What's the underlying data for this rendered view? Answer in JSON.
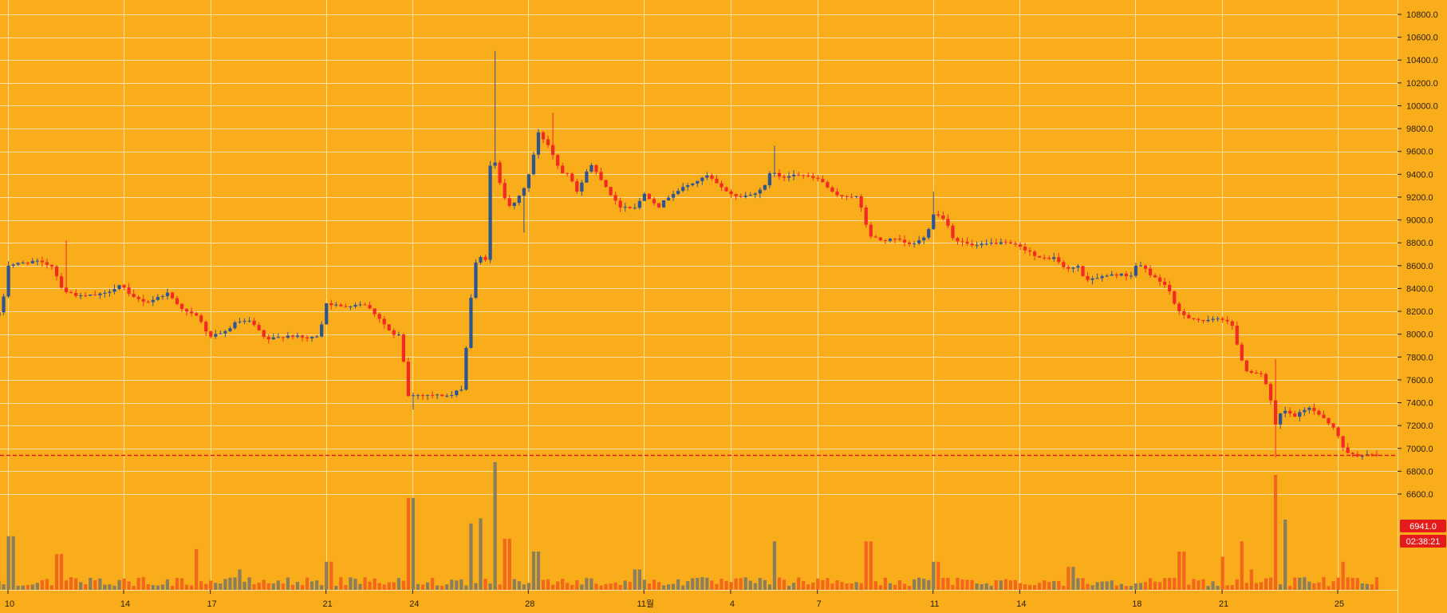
{
  "chart_data": {
    "type": "candlestick",
    "title": "",
    "xlabel": "",
    "ylabel": "",
    "ylim": [
      6500,
      10900
    ],
    "grid": true,
    "y_ticks": [
      6600,
      6800,
      7000,
      7200,
      7400,
      7600,
      7800,
      8000,
      8200,
      8400,
      8600,
      8800,
      9000,
      9200,
      9400,
      9600,
      9800,
      10000,
      10200,
      10400,
      10600,
      10800
    ],
    "y_tick_labels": [
      "6600.0",
      "6800.0",
      "7000.0",
      "7200.0",
      "7400.0",
      "7600.0",
      "7800.0",
      "8000.0",
      "8200.0",
      "8400.0",
      "8600.0",
      "8800.0",
      "9000.0",
      "9200.0",
      "9400.0",
      "9600.0",
      "9800.0",
      "10000.0",
      "10200.0",
      "10400.0",
      "10600.0",
      "10800.0"
    ],
    "x_ticks": [
      {
        "label": "10",
        "day": 10
      },
      {
        "label": "14",
        "day": 14
      },
      {
        "label": "17",
        "day": 17
      },
      {
        "label": "21",
        "day": 21
      },
      {
        "label": "24",
        "day": 24
      },
      {
        "label": "28",
        "day": 28
      },
      {
        "label": "11월",
        "day": 32
      },
      {
        "label": "4",
        "day": 35
      },
      {
        "label": "7",
        "day": 38
      },
      {
        "label": "11",
        "day": 42
      },
      {
        "label": "14",
        "day": 45
      },
      {
        "label": "18",
        "day": 49
      },
      {
        "label": "21",
        "day": 52
      },
      {
        "label": "25",
        "day": 56
      }
    ],
    "day_range": [
      9.6,
      57.3
    ],
    "current_price": 6941.0,
    "current_price_label": "6941.0",
    "countdown_label": "02:38:21",
    "colors": {
      "background": "#f9ad1b",
      "grid": "#fde2a6",
      "up": "#2c5593",
      "down": "#f22a22",
      "volume_up": "#8b7e5a",
      "volume_down": "#f3671c",
      "price_line": "#e51b1b"
    },
    "price_keypoints": [
      [
        9.6,
        8160
      ],
      [
        9.9,
        8200
      ],
      [
        10.0,
        8600
      ],
      [
        10.5,
        8620
      ],
      [
        11.0,
        8640
      ],
      [
        11.6,
        8600
      ],
      [
        12.0,
        8380
      ],
      [
        12.6,
        8330
      ],
      [
        13.4,
        8350
      ],
      [
        14.0,
        8440
      ],
      [
        14.3,
        8330
      ],
      [
        14.9,
        8280
      ],
      [
        15.6,
        8360
      ],
      [
        16.2,
        8200
      ],
      [
        16.7,
        8150
      ],
      [
        17.0,
        7980
      ],
      [
        17.5,
        8000
      ],
      [
        18.0,
        8110
      ],
      [
        18.5,
        8110
      ],
      [
        19.0,
        7950
      ],
      [
        19.8,
        7990
      ],
      [
        20.5,
        7960
      ],
      [
        20.9,
        8000
      ],
      [
        21.0,
        8280
      ],
      [
        21.6,
        8240
      ],
      [
        22.4,
        8270
      ],
      [
        22.9,
        8150
      ],
      [
        23.4,
        7990
      ],
      [
        23.7,
        7990
      ],
      [
        23.85,
        7460
      ],
      [
        24.5,
        7470
      ],
      [
        25.4,
        7460
      ],
      [
        25.8,
        7530
      ],
      [
        26.1,
        8320
      ],
      [
        26.3,
        8680
      ],
      [
        26.6,
        8660
      ],
      [
        26.8,
        9630
      ],
      [
        27.2,
        9230
      ],
      [
        27.5,
        9100
      ],
      [
        27.9,
        9260
      ],
      [
        28.2,
        9470
      ],
      [
        28.4,
        9770
      ],
      [
        28.8,
        9650
      ],
      [
        29.2,
        9420
      ],
      [
        29.5,
        9410
      ],
      [
        29.8,
        9230
      ],
      [
        30.2,
        9500
      ],
      [
        30.6,
        9360
      ],
      [
        31.2,
        9120
      ],
      [
        31.8,
        9110
      ],
      [
        32.1,
        9230
      ],
      [
        32.6,
        9120
      ],
      [
        33.0,
        9220
      ],
      [
        33.5,
        9290
      ],
      [
        34.0,
        9350
      ],
      [
        34.3,
        9390
      ],
      [
        34.7,
        9290
      ],
      [
        35.3,
        9200
      ],
      [
        35.8,
        9220
      ],
      [
        36.3,
        9300
      ],
      [
        36.5,
        9450
      ],
      [
        36.8,
        9360
      ],
      [
        37.3,
        9410
      ],
      [
        37.7,
        9380
      ],
      [
        38.2,
        9350
      ],
      [
        38.7,
        9210
      ],
      [
        39.2,
        9210
      ],
      [
        39.5,
        9200
      ],
      [
        39.65,
        9050
      ],
      [
        39.9,
        8860
      ],
      [
        40.3,
        8820
      ],
      [
        40.8,
        8830
      ],
      [
        41.3,
        8780
      ],
      [
        41.9,
        8860
      ],
      [
        42.0,
        9070
      ],
      [
        42.5,
        9010
      ],
      [
        42.8,
        8830
      ],
      [
        43.5,
        8770
      ],
      [
        44.2,
        8800
      ],
      [
        44.8,
        8790
      ],
      [
        45.4,
        8730
      ],
      [
        45.7,
        8660
      ],
      [
        46.3,
        8670
      ],
      [
        46.7,
        8560
      ],
      [
        47.1,
        8600
      ],
      [
        47.3,
        8480
      ],
      [
        47.9,
        8500
      ],
      [
        48.6,
        8530
      ],
      [
        48.9,
        8470
      ],
      [
        49.0,
        8600
      ],
      [
        49.3,
        8600
      ],
      [
        49.7,
        8500
      ],
      [
        50.2,
        8420
      ],
      [
        50.5,
        8210
      ],
      [
        50.9,
        8150
      ],
      [
        51.5,
        8110
      ],
      [
        52.0,
        8140
      ],
      [
        52.4,
        8110
      ],
      [
        52.6,
        7900
      ],
      [
        52.9,
        7680
      ],
      [
        53.5,
        7650
      ],
      [
        53.8,
        7380
      ],
      [
        53.95,
        7180
      ],
      [
        54.15,
        7340
      ],
      [
        54.6,
        7280
      ],
      [
        55.1,
        7360
      ],
      [
        55.6,
        7270
      ],
      [
        56.0,
        7160
      ],
      [
        56.3,
        6990
      ],
      [
        56.6,
        6941
      ]
    ],
    "volume_spikes": [
      [
        10.0,
        0.42
      ],
      [
        11.7,
        0.28
      ],
      [
        16.4,
        0.32
      ],
      [
        17.9,
        0.16
      ],
      [
        21.0,
        0.22
      ],
      [
        23.85,
        0.72
      ],
      [
        25.9,
        0.52
      ],
      [
        26.3,
        0.56
      ],
      [
        26.8,
        1.0
      ],
      [
        27.2,
        0.4
      ],
      [
        28.2,
        0.3
      ],
      [
        31.7,
        0.16
      ],
      [
        36.4,
        0.38
      ],
      [
        39.7,
        0.38
      ],
      [
        42.0,
        0.22
      ],
      [
        46.7,
        0.18
      ],
      [
        50.5,
        0.3
      ],
      [
        51.9,
        0.26
      ],
      [
        52.6,
        0.38
      ],
      [
        52.9,
        0.16
      ],
      [
        53.8,
        0.9
      ],
      [
        54.1,
        0.55
      ],
      [
        56.1,
        0.22
      ]
    ],
    "volume_range": [
      0,
      5000
    ],
    "bar_interval_hours": 4
  }
}
